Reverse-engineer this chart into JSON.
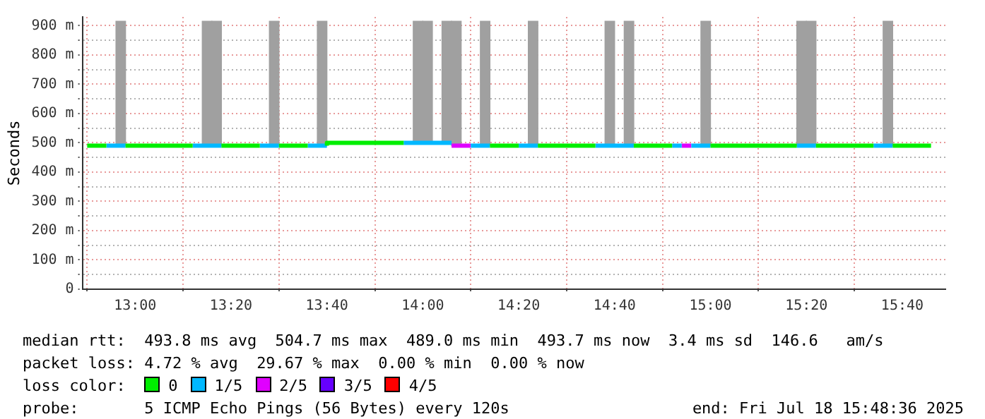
{
  "chart_data": {
    "type": "step",
    "ylabel": "Seconds",
    "legend_title": "loss color:",
    "legend": "bottom",
    "grid": true,
    "line_style": "solid",
    "marker": "none",
    "xlim": [
      "2025-07-18T12:49",
      "2025-07-18T15:49"
    ],
    "xticks": [
      {
        "value": "2025-07-18T13:00",
        "label": "13:00"
      },
      {
        "value": "2025-07-18T13:20",
        "label": "13:20"
      },
      {
        "value": "2025-07-18T13:40",
        "label": "13:40"
      },
      {
        "value": "2025-07-18T14:00",
        "label": "14:00"
      },
      {
        "value": "2025-07-18T14:20",
        "label": "14:20"
      },
      {
        "value": "2025-07-18T14:40",
        "label": "14:40"
      },
      {
        "value": "2025-07-18T15:00",
        "label": "15:00"
      },
      {
        "value": "2025-07-18T15:20",
        "label": "15:20"
      },
      {
        "value": "2025-07-18T15:40",
        "label": "15:40"
      }
    ],
    "ylim": [
      0,
      930
    ],
    "yticks": [
      {
        "value": 0,
        "label": "0"
      },
      {
        "value": 50,
        "label": null
      },
      {
        "value": 100,
        "label": "100 m"
      },
      {
        "value": 150,
        "label": null
      },
      {
        "value": 200,
        "label": "200 m"
      },
      {
        "value": 250,
        "label": null
      },
      {
        "value": 300,
        "label": "300 m"
      },
      {
        "value": 350,
        "label": null
      },
      {
        "value": 400,
        "label": "400 m"
      },
      {
        "value": 450,
        "label": null
      },
      {
        "value": 500,
        "label": "500 m"
      },
      {
        "value": 550,
        "label": null
      },
      {
        "value": 600,
        "label": "600 m"
      },
      {
        "value": 650,
        "label": null
      },
      {
        "value": 700,
        "label": "700 m"
      },
      {
        "value": 750,
        "label": null
      },
      {
        "value": 800,
        "label": "800 m"
      },
      {
        "value": 850,
        "label": null
      },
      {
        "value": 900,
        "label": "900 m"
      }
    ],
    "annotations": [
      "median rtt:  493.8 ms avg  504.7 ms max  489.0 ms min  493.7 ms now  3.4 ms sd  146.6   am/s",
      "packet loss: 4.72 % avg  29.67 % max  0.00 % min  0.00 % now",
      "probe:       5 ICMP Echo Pings (56 Bytes) every 120s",
      "end: Fri Jul 18 15:48:36 2025"
    ],
    "series": [
      {
        "type": "bar",
        "color": "#a0a0a0",
        "x": [
          "2025-07-18T12:57",
          "2025-07-18T13:15",
          "2025-07-18T13:17",
          "2025-07-18T13:29",
          "2025-07-18T13:39",
          "2025-07-18T13:59",
          "2025-07-18T14:01",
          "2025-07-18T14:05",
          "2025-07-18T14:07",
          "2025-07-18T14:13",
          "2025-07-18T14:23",
          "2025-07-18T14:39",
          "2025-07-18T14:43",
          "2025-07-18T14:59",
          "2025-07-18T15:19",
          "2025-07-18T15:21",
          "2025-07-18T15:37"
        ],
        "base": [
          490,
          490,
          490,
          490,
          490,
          500,
          500,
          500,
          490,
          490,
          490,
          490,
          490,
          490,
          490,
          490,
          490
        ],
        "values": [
          425,
          425,
          425,
          425,
          425,
          415,
          415,
          415,
          425,
          425,
          425,
          425,
          425,
          425,
          425,
          425,
          425
        ]
      },
      {
        "name": "0",
        "color": "#00ee00",
        "x": [
          "2025-07-18T12:50",
          "2025-07-18T12:54",
          null,
          "2025-07-18T12:58",
          "2025-07-18T13:12",
          null,
          "2025-07-18T13:18",
          "2025-07-18T13:26",
          null,
          "2025-07-18T13:30",
          "2025-07-18T13:36",
          null,
          "2025-07-18T13:40",
          "2025-07-18T13:54",
          "2025-07-18T13:56",
          null,
          "2025-07-18T14:14",
          "2025-07-18T14:20",
          null,
          "2025-07-18T14:24",
          "2025-07-18T14:36",
          null,
          "2025-07-18T14:44",
          "2025-07-18T14:52",
          null,
          "2025-07-18T15:00",
          "2025-07-18T15:18",
          null,
          "2025-07-18T15:22",
          "2025-07-18T15:34",
          null,
          "2025-07-18T15:38",
          "2025-07-18T15:46"
        ],
        "values": [
          490,
          490,
          null,
          490,
          490,
          null,
          490,
          490,
          null,
          490,
          490,
          null,
          490,
          500,
          500,
          null,
          490,
          490,
          null,
          490,
          490,
          null,
          490,
          490,
          null,
          490,
          490,
          null,
          490,
          490,
          null,
          490,
          490
        ]
      },
      {
        "name": "1/5",
        "color": "#00b8ff",
        "x": [
          "2025-07-18T12:54",
          "2025-07-18T12:58",
          null,
          "2025-07-18T13:12",
          "2025-07-18T13:18",
          null,
          "2025-07-18T13:26",
          "2025-07-18T13:30",
          null,
          "2025-07-18T13:36",
          "2025-07-18T13:40",
          null,
          "2025-07-18T13:56",
          "2025-07-18T14:06",
          null,
          "2025-07-18T14:10",
          "2025-07-18T14:14",
          null,
          "2025-07-18T14:20",
          "2025-07-18T14:24",
          null,
          "2025-07-18T14:36",
          "2025-07-18T14:44",
          null,
          "2025-07-18T14:52",
          "2025-07-18T14:54",
          null,
          "2025-07-18T14:56",
          "2025-07-18T15:00",
          null,
          "2025-07-18T15:18",
          "2025-07-18T15:22",
          null,
          "2025-07-18T15:34",
          "2025-07-18T15:38"
        ],
        "values": [
          490,
          490,
          null,
          490,
          490,
          null,
          490,
          490,
          null,
          490,
          490,
          null,
          500,
          500,
          null,
          490,
          490,
          null,
          490,
          490,
          null,
          490,
          490,
          null,
          490,
          490,
          null,
          490,
          490,
          null,
          490,
          490,
          null,
          490,
          490
        ]
      },
      {
        "name": "2/5",
        "color": "#e000ff",
        "x": [
          "2025-07-18T14:06",
          "2025-07-18T14:10",
          null,
          "2025-07-18T14:54",
          "2025-07-18T14:56"
        ],
        "values": [
          490,
          490,
          null,
          490,
          490
        ]
      },
      {
        "name": "3/5",
        "color": "#6600ff"
      },
      {
        "name": "4/5",
        "color": "#ff0000"
      }
    ]
  }
}
